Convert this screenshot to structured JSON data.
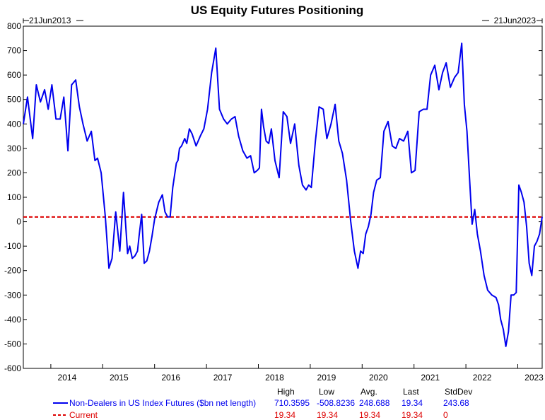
{
  "colors": {
    "series": "#0000ee",
    "current": "#dd0000",
    "axis": "#000000",
    "background": "#ffffff"
  },
  "chart_data": {
    "type": "line",
    "title": "US Equity Futures Positioning",
    "start_label": "21Jun2013",
    "end_label": "21Jun2023",
    "ylim": [
      -600,
      800
    ],
    "y_ticks": [
      800,
      700,
      600,
      500,
      400,
      300,
      200,
      100,
      0,
      -100,
      -200,
      -300,
      -400,
      -500,
      -600
    ],
    "xlim": [
      2013.47,
      2023.47
    ],
    "x_ticks": [
      2014,
      2015,
      2016,
      2017,
      2018,
      2019,
      2020,
      2021,
      2022,
      2023
    ],
    "grid": false,
    "legend": "bottom",
    "stat_headers": [
      "High",
      "Low",
      "Avg.",
      "Last",
      "StdDev"
    ],
    "series": [
      {
        "name": "Non-Dealers in US Index Futures ($bn net length)",
        "color": "#0000ee",
        "style": "solid",
        "stats": [
          "710.3595",
          "-508.8236",
          "248.688",
          "19.34",
          "243.68"
        ],
        "x": [
          2013.47,
          2013.55,
          2013.65,
          2013.72,
          2013.8,
          2013.88,
          2013.95,
          2014.02,
          2014.1,
          2014.18,
          2014.25,
          2014.33,
          2014.4,
          2014.48,
          2014.55,
          2014.62,
          2014.7,
          2014.78,
          2014.85,
          2014.9,
          2014.97,
          2015.05,
          2015.12,
          2015.18,
          2015.25,
          2015.33,
          2015.4,
          2015.48,
          2015.52,
          2015.57,
          2015.62,
          2015.67,
          2015.7,
          2015.75,
          2015.8,
          2015.85,
          2015.9,
          2015.95,
          2016.0,
          2016.08,
          2016.15,
          2016.2,
          2016.25,
          2016.3,
          2016.35,
          2016.42,
          2016.45,
          2016.48,
          2016.52,
          2016.58,
          2016.62,
          2016.67,
          2016.72,
          2016.8,
          2016.88,
          2016.95,
          2017.02,
          2017.1,
          2017.18,
          2017.25,
          2017.33,
          2017.4,
          2017.48,
          2017.55,
          2017.62,
          2017.7,
          2017.78,
          2017.85,
          2017.92,
          2017.98,
          2018.02,
          2018.06,
          2018.1,
          2018.15,
          2018.2,
          2018.25,
          2018.32,
          2018.4,
          2018.48,
          2018.55,
          2018.62,
          2018.7,
          2018.78,
          2018.85,
          2018.92,
          2018.97,
          2019.02,
          2019.1,
          2019.17,
          2019.25,
          2019.32,
          2019.4,
          2019.48,
          2019.55,
          2019.62,
          2019.7,
          2019.78,
          2019.85,
          2019.92,
          2019.97,
          2020.02,
          2020.07,
          2020.12,
          2020.17,
          2020.22,
          2020.28,
          2020.35,
          2020.42,
          2020.5,
          2020.58,
          2020.65,
          2020.72,
          2020.8,
          2020.88,
          2020.95,
          2021.02,
          2021.1,
          2021.18,
          2021.25,
          2021.32,
          2021.4,
          2021.48,
          2021.55,
          2021.62,
          2021.7,
          2021.78,
          2021.85,
          2021.92,
          2021.97,
          2022.02,
          2022.07,
          2022.12,
          2022.17,
          2022.22,
          2022.28,
          2022.35,
          2022.42,
          2022.5,
          2022.58,
          2022.63,
          2022.67,
          2022.72,
          2022.77,
          2022.82,
          2022.87,
          2022.92,
          2022.97,
          2023.02,
          2023.07,
          2023.12,
          2023.17,
          2023.22,
          2023.27,
          2023.32,
          2023.37,
          2023.42,
          2023.47
        ],
        "values": [
          400,
          510,
          340,
          560,
          490,
          540,
          460,
          560,
          420,
          420,
          510,
          290,
          560,
          580,
          470,
          400,
          330,
          370,
          250,
          260,
          200,
          20,
          -190,
          -150,
          40,
          -120,
          120,
          -130,
          -100,
          -150,
          -140,
          -120,
          -60,
          30,
          -170,
          -160,
          -120,
          -60,
          10,
          80,
          110,
          40,
          20,
          20,
          140,
          240,
          250,
          300,
          310,
          340,
          320,
          380,
          360,
          310,
          350,
          380,
          460,
          610,
          710,
          460,
          420,
          400,
          420,
          430,
          350,
          290,
          260,
          270,
          200,
          210,
          220,
          460,
          390,
          330,
          320,
          380,
          250,
          180,
          450,
          430,
          320,
          400,
          230,
          150,
          130,
          150,
          140,
          330,
          470,
          460,
          340,
          400,
          480,
          330,
          280,
          170,
          0,
          -120,
          -190,
          -120,
          -130,
          -50,
          -20,
          30,
          120,
          170,
          180,
          370,
          410,
          310,
          300,
          340,
          330,
          370,
          200,
          210,
          450,
          460,
          460,
          600,
          640,
          540,
          610,
          650,
          550,
          590,
          610,
          730,
          480,
          370,
          180,
          -10,
          50,
          -50,
          -120,
          -220,
          -280,
          -300,
          -310,
          -340,
          -400,
          -440,
          -510,
          -450,
          -300,
          -300,
          -290,
          150,
          120,
          80,
          -20,
          -170,
          -220,
          -100,
          -80,
          -50,
          20
        ]
      },
      {
        "name": "Current",
        "color": "#dd0000",
        "style": "dashed",
        "stats": [
          "19.34",
          "19.34",
          "19.34",
          "19.34",
          "0"
        ],
        "x": [
          2013.47,
          2023.47
        ],
        "values": [
          19.34,
          19.34
        ]
      }
    ]
  }
}
